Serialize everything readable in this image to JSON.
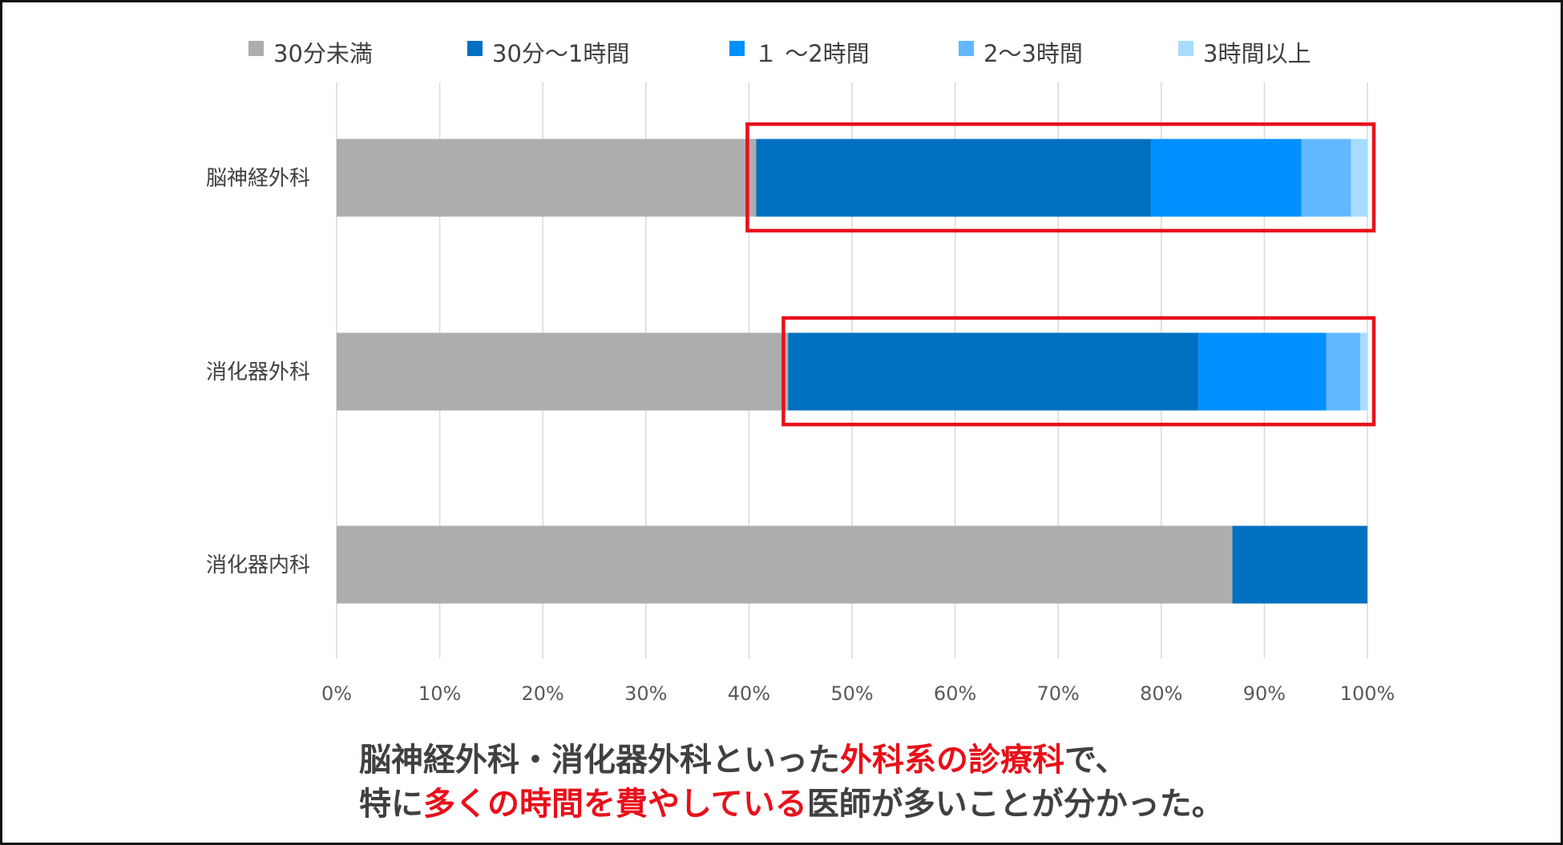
{
  "chart_data": {
    "type": "bar",
    "orientation": "horizontal",
    "stacked": "percent",
    "categories": [
      "脳神経外科",
      "消化器外科",
      "消化器内科"
    ],
    "series": [
      {
        "name": "30分未満",
        "color": "#adadad",
        "values": [
          40.7,
          43.8,
          86.9
        ]
      },
      {
        "name": "30分〜1時間",
        "color": "#0070c0",
        "values": [
          38.3,
          39.8,
          13.1
        ]
      },
      {
        "name": "１ 〜2時間",
        "color": "#0090ff",
        "values": [
          14.6,
          12.4,
          0
        ]
      },
      {
        "name": "2〜3時間",
        "color": "#62b8ff",
        "values": [
          4.8,
          3.3,
          0
        ]
      },
      {
        "name": "3時間以上",
        "color": "#a8dcff",
        "values": [
          1.6,
          0.7,
          0
        ]
      }
    ],
    "xlim": [
      0,
      100
    ],
    "xticks": [
      "0%",
      "10%",
      "20%",
      "30%",
      "40%",
      "50%",
      "60%",
      "70%",
      "80%",
      "90%",
      "100%"
    ],
    "grid": true,
    "legend_position": "top",
    "highlight_color": "#e8101a",
    "highlights": [
      {
        "category": "脳神経外科",
        "from": 40,
        "to": 100
      },
      {
        "category": "消化器外科",
        "from": 43.5,
        "to": 100
      }
    ]
  },
  "caption": {
    "line1": [
      {
        "text": "脳神経外科・消化器外科といった",
        "highlight": false
      },
      {
        "text": "外科系の診療科",
        "highlight": true
      },
      {
        "text": "で、",
        "highlight": false
      }
    ],
    "line2": [
      {
        "text": "特に",
        "highlight": false
      },
      {
        "text": "多くの時間を費やしている",
        "highlight": true
      },
      {
        "text": "医師が多いことが分かった。",
        "highlight": false
      }
    ]
  }
}
